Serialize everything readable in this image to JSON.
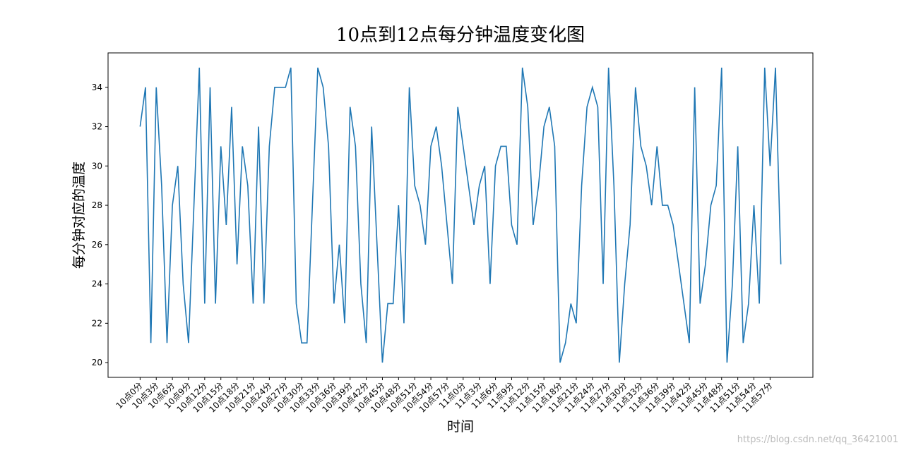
{
  "chart_data": {
    "type": "line",
    "title": "10点到12点每分钟温度变化图",
    "xlabel": "时间",
    "ylabel": "每分钟对应的温度",
    "watermark": "https://blog.csdn.net/qq_36421001",
    "categories": [
      "10点0分",
      null,
      null,
      "10点3分",
      null,
      null,
      "10点6分",
      null,
      null,
      "10点9分",
      null,
      null,
      "10点12分",
      null,
      null,
      "10点15分",
      null,
      null,
      "10点18分",
      null,
      null,
      "10点21分",
      null,
      null,
      "10点24分",
      null,
      null,
      "10点27分",
      null,
      null,
      "10点30分",
      null,
      null,
      "10点33分",
      null,
      null,
      "10点36分",
      null,
      null,
      "10点39分",
      null,
      null,
      "10点42分",
      null,
      null,
      "10点45分",
      null,
      null,
      "10点48分",
      null,
      null,
      "10点51分",
      null,
      null,
      "10点54分",
      null,
      null,
      "10点57分",
      null,
      null,
      "11点0分",
      null,
      null,
      "11点3分",
      null,
      null,
      "11点6分",
      null,
      null,
      "11点9分",
      null,
      null,
      "11点12分",
      null,
      null,
      "11点15分",
      null,
      null,
      "11点18分",
      null,
      null,
      "11点21分",
      null,
      null,
      "11点24分",
      null,
      null,
      "11点27分",
      null,
      null,
      "11点30分",
      null,
      null,
      "11点33分",
      null,
      null,
      "11点36分",
      null,
      null,
      "11点39分",
      null,
      null,
      "11点42分",
      null,
      null,
      "11点45分",
      null,
      null,
      "11点48分",
      null,
      null,
      "11点51分",
      null,
      null,
      "11点54分",
      null,
      null,
      "11点57分",
      null,
      null
    ],
    "series": [
      {
        "color": "#1f77b4",
        "values": [
          32,
          34,
          21,
          34,
          29,
          21,
          28,
          30,
          24,
          21,
          28,
          35,
          23,
          34,
          23,
          31,
          27,
          33,
          25,
          31,
          29,
          23,
          32,
          23,
          31,
          34,
          34,
          34,
          35,
          23,
          21,
          21,
          28,
          35,
          34,
          31,
          23,
          26,
          22,
          33,
          31,
          24,
          21,
          32,
          26,
          20,
          23,
          23,
          28,
          22,
          34,
          29,
          28,
          26,
          31,
          32,
          30,
          27,
          24,
          33,
          31,
          29,
          27,
          29,
          30,
          24,
          30,
          31,
          31,
          27,
          26,
          35,
          33,
          27,
          29,
          32,
          33,
          31,
          20,
          21,
          23,
          22,
          29,
          33,
          34,
          33,
          24,
          35,
          29,
          20,
          24,
          27,
          34,
          31,
          30,
          28,
          31,
          28,
          28,
          27,
          25,
          23,
          21,
          34,
          23,
          25,
          28,
          29,
          35,
          20,
          24,
          31,
          21,
          23,
          28,
          23,
          35,
          30,
          35,
          25
        ]
      }
    ],
    "xlim": [
      -5.95,
      124.95
    ],
    "ylim": [
      19.25,
      35.75
    ],
    "yticks": [
      20,
      22,
      24,
      26,
      28,
      30,
      32,
      34
    ],
    "grid": false
  }
}
